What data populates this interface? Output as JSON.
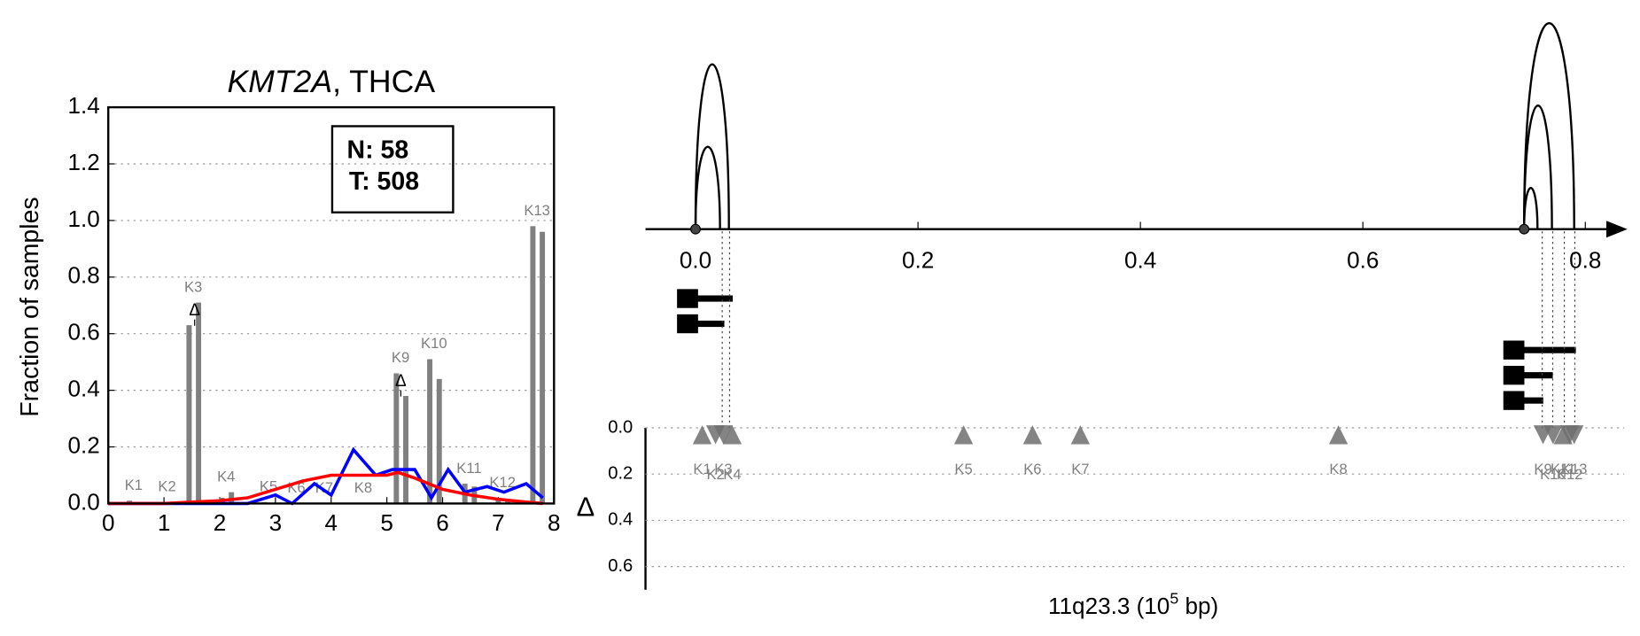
{
  "chart_data": [
    {
      "type": "bar",
      "title_italic": "KMT2A",
      "title": ", THCA",
      "ylabel": "Fraction of samples",
      "annotations": [
        "N: 58",
        "T: 508"
      ],
      "xlim": [
        0,
        8
      ],
      "xticks": [
        0,
        1,
        2,
        3,
        4,
        5,
        6,
        7,
        8
      ],
      "ylim": [
        0,
        1.4
      ],
      "yticks": [
        {
          "value": 0,
          "label": "0.0"
        },
        {
          "value": 0.2,
          "label": "0.2"
        },
        {
          "value": 0.4,
          "label": "0.4"
        },
        {
          "value": 0.6,
          "label": "0.6"
        },
        {
          "value": 0.8,
          "label": "0.8"
        },
        {
          "value": 1,
          "label": "1.0"
        },
        {
          "value": 1.2,
          "label": "1.2"
        },
        {
          "value": 1.4,
          "label": "1.4"
        }
      ],
      "grid": true,
      "categories": [
        "K1",
        "K2",
        "K3",
        "K4",
        "K5",
        "K6",
        "K7",
        "K8",
        "K9",
        "K10",
        "K11",
        "K12",
        "K13"
      ],
      "x": [
        0.38,
        0.98,
        1.45,
        2.04,
        2.8,
        3.3,
        3.8,
        4.5,
        5.17,
        5.77,
        6.4,
        7.0,
        7.62
      ],
      "series": [
        {
          "color": "#808080",
          "values": [
            0.01,
            0.005,
            0.63,
            0.02,
            0.005,
            0,
            0,
            0,
            0.46,
            0.51,
            0.07,
            0.02,
            0.98
          ]
        },
        {
          "color": "#808080",
          "values": [
            0,
            0,
            0.71,
            0.04,
            0,
            0,
            0,
            0,
            0.38,
            0.44,
            0.06,
            0.01,
            0.96
          ]
        }
      ],
      "delta_symbol": "Δ",
      "delta_markers": {
        "x": [
          1.55,
          5.25
        ],
        "values": [
          0.68,
          0.43
        ]
      },
      "lines": [
        {
          "color": "#0000ff",
          "x": [
            0,
            0.5,
            1,
            1.5,
            2,
            2.5,
            3,
            3.3,
            3.7,
            4,
            4.4,
            4.8,
            5.1,
            5.5,
            5.8,
            6.1,
            6.4,
            6.8,
            7.1,
            7.5,
            7.8
          ],
          "values": [
            0,
            0,
            0,
            0,
            0,
            0,
            0.03,
            0,
            0.07,
            0.03,
            0.19,
            0.1,
            0.12,
            0.12,
            0.02,
            0.12,
            0.04,
            0.06,
            0.04,
            0.07,
            0.02
          ]
        },
        {
          "color": "#ff0000",
          "x": [
            0,
            1,
            1.5,
            2,
            2.5,
            3,
            3.5,
            4,
            4.5,
            5,
            5.2,
            5.5,
            6,
            6.5,
            7,
            7.5,
            7.8
          ],
          "values": [
            0,
            0,
            0.005,
            0.01,
            0.02,
            0.05,
            0.08,
            0.1,
            0.1,
            0.1,
            0.11,
            0.09,
            0.05,
            0.03,
            0.015,
            0.005,
            0
          ]
        }
      ]
    },
    {
      "type": "arc",
      "xlabel": "11q23.3 (10",
      "xlabel_exponent": "5",
      "xlabel_unit": " bp)",
      "xlim": [
        -0.045,
        0.835
      ],
      "xticks": [
        {
          "value": 0,
          "label": "0.0"
        },
        {
          "value": 0.2,
          "label": "0.2"
        },
        {
          "value": 0.4,
          "label": "0.4"
        },
        {
          "value": 0.6,
          "label": "0.6"
        },
        {
          "value": 0.8,
          "label": "0.8"
        }
      ],
      "arcs": {
        "start": [
          0,
          0,
          0.745,
          0.745,
          0.745
        ],
        "end": [
          0.03,
          0.022,
          0.79,
          0.77,
          0.757
        ],
        "values": [
          0.8,
          0.4,
          1.0,
          0.6,
          0.2
        ]
      },
      "delta_panel": {
        "ylabel": "Δ",
        "ylim": [
          0,
          0.7
        ],
        "yticks": [
          {
            "value": 0,
            "label": "0.0"
          },
          {
            "value": 0.2,
            "label": "0.2"
          },
          {
            "value": 0.4,
            "label": "0.4"
          },
          {
            "value": 0.6,
            "label": "0.6"
          }
        ],
        "color": "#6e6e6e",
        "categories": [
          "K1",
          "K2",
          "K3",
          "K4",
          "K5",
          "K6",
          "K7",
          "K8",
          "K9",
          "K10",
          "K11",
          "K12",
          "K13"
        ],
        "x": [
          0.006,
          0.018,
          0.025,
          0.033,
          0.241,
          0.303,
          0.346,
          0.578,
          0.762,
          0.771,
          0.78,
          0.786,
          0.79
        ],
        "values": [
          0.03,
          0.03,
          0.03,
          0.03,
          0.03,
          0.03,
          0.03,
          0.03,
          0.03,
          0.03,
          0.03,
          0.03,
          0.03
        ],
        "direction": [
          "up",
          "down",
          "down",
          "up",
          "up",
          "up",
          "up",
          "up",
          "down",
          "down",
          "up",
          "down",
          "down"
        ]
      }
    }
  ]
}
